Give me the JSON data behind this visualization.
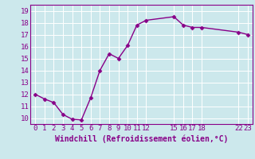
{
  "x": [
    0,
    1,
    2,
    3,
    4,
    5,
    6,
    7,
    8,
    9,
    10,
    11,
    12,
    15,
    16,
    17,
    18,
    22,
    23
  ],
  "y": [
    12.0,
    11.6,
    11.3,
    10.3,
    9.9,
    9.85,
    11.7,
    14.0,
    15.4,
    15.0,
    16.1,
    17.8,
    18.2,
    18.5,
    17.8,
    17.6,
    17.6,
    17.2,
    17.0
  ],
  "xticks": [
    0,
    1,
    2,
    3,
    4,
    5,
    6,
    7,
    8,
    9,
    10,
    11,
    12,
    15,
    16,
    17,
    18,
    22,
    23
  ],
  "yticks": [
    10,
    11,
    12,
    13,
    14,
    15,
    16,
    17,
    18,
    19
  ],
  "xlim": [
    -0.5,
    23.5
  ],
  "ylim": [
    9.5,
    19.5
  ],
  "xlabel": "Windchill (Refroidissement éolien,°C)",
  "line_color": "#880088",
  "marker_color": "#880088",
  "bg_color": "#cce8ec",
  "grid_color": "#ffffff",
  "tick_color": "#880088",
  "label_color": "#880088",
  "marker": "D",
  "markersize": 2.5,
  "linewidth": 1.0,
  "xlabel_fontsize": 7,
  "tick_fontsize": 6.5
}
